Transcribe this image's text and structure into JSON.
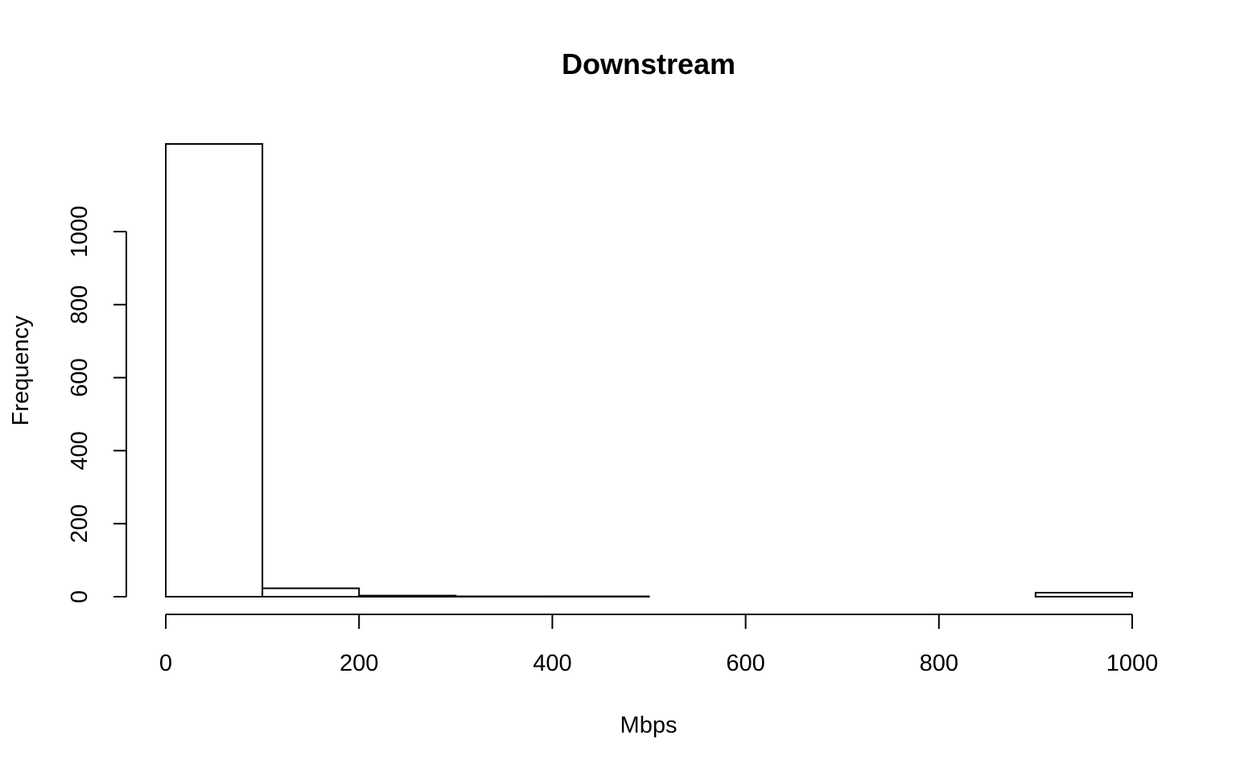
{
  "chart_data": {
    "type": "bar",
    "title": "Downstream",
    "xlabel": "Mbps",
    "ylabel": "Frequency",
    "bin_edges": [
      0,
      100,
      200,
      300,
      400,
      500,
      600,
      700,
      800,
      900,
      1000
    ],
    "counts": [
      1240,
      23,
      3,
      1,
      1,
      0,
      0,
      0,
      0,
      11
    ],
    "x_ticks": [
      0,
      200,
      400,
      600,
      800,
      1000
    ],
    "y_ticks": [
      0,
      200,
      400,
      600,
      800,
      1000
    ],
    "xlim": [
      0,
      1000
    ],
    "ylim": [
      0,
      1240
    ],
    "grid": false,
    "colors": {
      "bar_fill": "#ffffff",
      "bar_stroke": "#000000"
    }
  }
}
